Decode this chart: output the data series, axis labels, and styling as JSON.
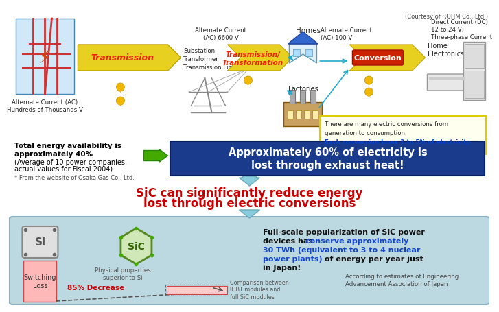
{
  "bg_color": "#ffffff",
  "courtesy_text": "(Courtesy of ROHM Co., Ltd.)",
  "title_sic_line1": "SiC can significantly reduce energy",
  "title_sic_line2": "lost through electric conversions",
  "blue_box_text": "Approximately 60% of electricity is\nlost through exhaust heat!",
  "left_text_line1": "Total energy availability is",
  "left_text_line2": "approximately 40%",
  "left_text_line3": "(Average of 10 power companies,",
  "left_text_line4": "actual values for Fiscal 2004)",
  "left_text_footnote": "* From the website of Osaka Gas Co., Ltd.",
  "transmission_label": "Transmission",
  "substation_text": "Substation\nTransformer\nTransmission Line",
  "ac6600_text": "Alternate Current\n(AC) 6600 V",
  "trans_transform_line1": "Transmission/",
  "trans_transform_line2": "Transformation",
  "homes_label": "Homes",
  "factories_label": "Factories",
  "ac100_text": "Alternate Current\n(AC) 100 V",
  "conversion_label": "Conversion",
  "home_electronics_label": "Home\nElectronics",
  "dc_text": "Direct Current (DC)\n12 to 24 V,\nThree-phase Current",
  "ac_hundreds_text": "Alternate Current (AC)\nHundreds of Thousands V",
  "yellow_box_line1": "There are many electric conversions from",
  "yellow_box_line2": "generation to consumption.",
  "yellow_highlight_text": "Each conversion loses 3 to 5% of electricity.",
  "bottom_panel_bg": "#b8d8e0",
  "bottom_footnote": "According to estimates of Engineering\nAdvancement Association of Japan",
  "si_label": "Si",
  "sic_label": "SiC",
  "physical_props_text": "Physical properties\nsuperior to Si",
  "switching_loss_text": "Switching\nLoss",
  "decrease_text": "85% Decrease",
  "comparison_text": "Comparison between\nIGBT modules and\nfull SiC modules",
  "arrow1_color": "#e8d020",
  "arrow2_color": "#e8d020",
  "arrow3_color": "#e8d020",
  "drop_color": "#f0b800",
  "blue_box_color": "#1a3a8c",
  "green_arrow_color": "#44aa00"
}
